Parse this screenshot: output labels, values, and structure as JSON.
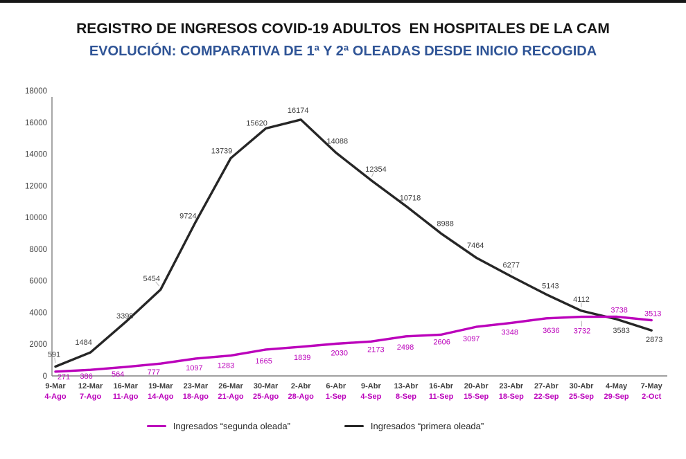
{
  "page": {
    "title": "REGISTRO DE INGRESOS COVID-19 ADULTOS  EN HOSPITALES DE LA CAM",
    "subtitle": "EVOLUCIÓN: COMPARATIVA DE 1ª Y 2ª OLEADAS DESDE INICIO RECOGIDA"
  },
  "colors": {
    "top_bar": "#161616",
    "title_black": "#161616",
    "subtitle_blue": "#2f5496",
    "axis_line": "#808080",
    "axis_text": "#404040",
    "first_wave_line": "#262626",
    "first_wave_label": "#404040",
    "second_wave_line": "#bb00bb",
    "second_wave_label": "#bb00bb"
  },
  "chart_data": {
    "type": "line",
    "title": "REGISTRO DE INGRESOS COVID-19 ADULTOS  EN HOSPITALES DE LA CAM",
    "subtitle": "EVOLUCIÓN: COMPARATIVA DE 1ª Y 2ª OLEADAS DESDE INICIO RECOGIDA",
    "grid": false,
    "legend_position": "bottom-center",
    "ylim": [
      0,
      18000
    ],
    "yticks": [
      0,
      2000,
      4000,
      6000,
      8000,
      10000,
      12000,
      14000,
      16000,
      18000
    ],
    "x_labels_row1": [
      "9-Mar",
      "12-Mar",
      "16-Mar",
      "19-Mar",
      "23-Mar",
      "26-Mar",
      "30-Mar",
      "2-Abr",
      "6-Abr",
      "9-Abr",
      "13-Abr",
      "16-Abr",
      "20-Abr",
      "23-Abr",
      "27-Abr",
      "30-Abr",
      "4-May",
      "7-May"
    ],
    "x_labels_row2": [
      "4-Ago",
      "7-Ago",
      "11-Ago",
      "14-Ago",
      "18-Ago",
      "21-Ago",
      "25-Ago",
      "28-Ago",
      "1-Sep",
      "4-Sep",
      "8-Sep",
      "11-Sep",
      "15-Sep",
      "18-Sep",
      "22-Sep",
      "25-Sep",
      "29-Sep",
      "2-Oct"
    ],
    "series": [
      {
        "key": "primera",
        "name": "Ingresados “primera oleada”",
        "color": "#262626",
        "label_color": "#404040",
        "values": [
          591,
          1484,
          3398,
          5454,
          9724,
          13739,
          15620,
          16174,
          14088,
          12354,
          10718,
          8988,
          7464,
          6277,
          5143,
          4112,
          3583,
          2873
        ]
      },
      {
        "key": "segunda",
        "name": "Ingresados “segunda oleada”",
        "color": "#bb00bb",
        "label_color": "#bb00bb",
        "values": [
          271,
          386,
          564,
          777,
          1097,
          1283,
          1665,
          1839,
          2030,
          2173,
          2498,
          2606,
          3097,
          3348,
          3636,
          3732,
          3738,
          3513
        ]
      }
    ]
  },
  "legend": {
    "items": [
      {
        "label": "Ingresados “segunda oleada”",
        "color": "#bb00bb"
      },
      {
        "label": "Ingresados “primera oleada”",
        "color": "#262626"
      }
    ]
  }
}
